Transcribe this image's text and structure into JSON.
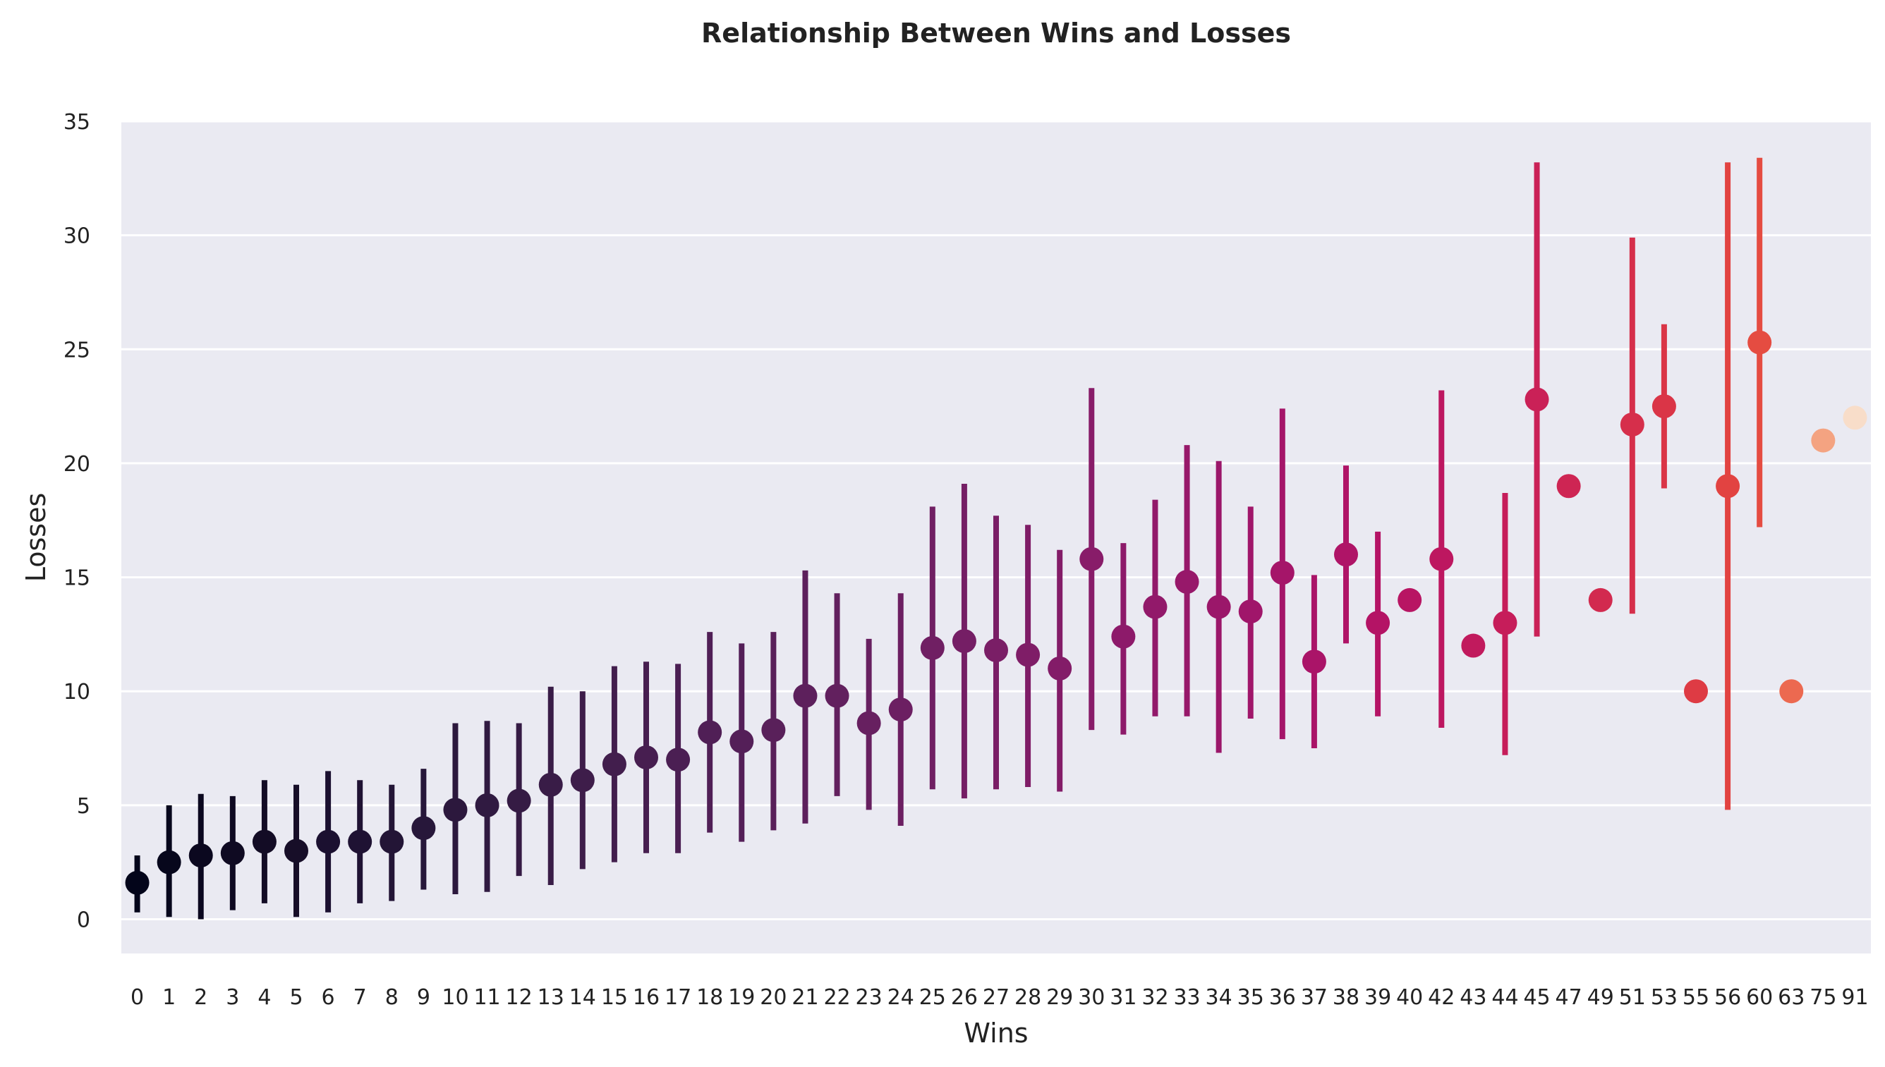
{
  "chart_data": {
    "type": "scatter",
    "title": "Relationship Between Wins and Losses",
    "xlabel": "Wins",
    "ylabel": "Losses",
    "ylim": [
      -1.5,
      35
    ],
    "yticks": [
      0,
      5,
      10,
      15,
      20,
      25,
      30,
      35
    ],
    "grid": true,
    "legend": "none",
    "categories": [
      "0",
      "1",
      "2",
      "3",
      "4",
      "5",
      "6",
      "7",
      "8",
      "9",
      "10",
      "11",
      "12",
      "13",
      "14",
      "15",
      "16",
      "17",
      "18",
      "19",
      "20",
      "21",
      "22",
      "23",
      "24",
      "25",
      "26",
      "27",
      "28",
      "29",
      "30",
      "31",
      "32",
      "33",
      "34",
      "35",
      "36",
      "37",
      "38",
      "39",
      "40",
      "42",
      "43",
      "44",
      "45",
      "47",
      "49",
      "51",
      "53",
      "55",
      "56",
      "60",
      "63",
      "75",
      "91"
    ],
    "values": [
      1.6,
      2.5,
      2.8,
      2.9,
      3.4,
      3.0,
      3.4,
      3.4,
      3.4,
      4.0,
      4.8,
      5.0,
      5.2,
      5.9,
      6.1,
      6.8,
      7.1,
      7.0,
      8.2,
      7.8,
      8.3,
      9.8,
      9.8,
      8.6,
      9.2,
      11.9,
      12.2,
      11.8,
      11.6,
      11.0,
      15.8,
      12.4,
      13.7,
      14.8,
      13.7,
      13.5,
      15.2,
      11.3,
      16.0,
      13.0,
      14.0,
      15.8,
      12.0,
      13.0,
      22.8,
      19.0,
      14.0,
      21.7,
      22.5,
      10.0,
      19.0,
      25.3,
      10.0,
      21.0,
      22.0
    ],
    "ci_low": [
      0.3,
      0.1,
      0.0,
      0.4,
      0.7,
      0.1,
      0.3,
      0.7,
      0.8,
      1.3,
      1.1,
      1.2,
      1.9,
      1.5,
      2.2,
      2.5,
      2.9,
      2.9,
      3.8,
      3.4,
      3.9,
      4.2,
      5.4,
      4.8,
      4.1,
      5.7,
      5.3,
      5.7,
      5.8,
      5.6,
      8.3,
      8.1,
      8.9,
      8.9,
      7.3,
      8.8,
      7.9,
      7.5,
      12.1,
      8.9,
      14.0,
      8.4,
      12.0,
      7.2,
      12.4,
      19.0,
      14.0,
      13.4,
      18.9,
      10.0,
      4.8,
      17.2,
      10.0,
      21.0,
      22.0
    ],
    "ci_high": [
      2.8,
      5.0,
      5.5,
      5.4,
      6.1,
      5.9,
      6.5,
      6.1,
      5.9,
      6.6,
      8.6,
      8.7,
      8.6,
      10.2,
      10.0,
      11.1,
      11.3,
      11.2,
      12.6,
      12.1,
      12.6,
      15.3,
      14.3,
      12.3,
      14.3,
      18.1,
      19.1,
      17.7,
      17.3,
      16.2,
      23.3,
      16.5,
      18.4,
      20.8,
      20.1,
      18.1,
      22.4,
      15.1,
      19.9,
      17.0,
      14.0,
      23.2,
      12.0,
      18.7,
      33.2,
      19.0,
      14.0,
      29.9,
      26.1,
      10.0,
      33.2,
      33.4,
      10.0,
      21.0,
      22.0
    ],
    "colors": [
      "#03051a",
      "#07071c",
      "#0b081f",
      "#0f0a22",
      "#130c25",
      "#170e28",
      "#1b1030",
      "#1f1233",
      "#231536",
      "#27173a",
      "#2c183d",
      "#301a41",
      "#351b44",
      "#391c47",
      "#3e1d4a",
      "#421e4d",
      "#471e50",
      "#4b1f53",
      "#501f56",
      "#541f58",
      "#59205a",
      "#5d205c",
      "#62205e",
      "#672060",
      "#6c1f62",
      "#701f63",
      "#751e65",
      "#7a1e66",
      "#7f1d67",
      "#831c68",
      "#881c69",
      "#8d1a6a",
      "#92196a",
      "#97186a",
      "#9b176a",
      "#a0166a",
      "#a51569",
      "#aa1468",
      "#af1467",
      "#b41365",
      "#b81563",
      "#bd1760",
      "#c11a5d",
      "#c61d5a",
      "#ca2157",
      "#ce2553",
      "#d22a4f",
      "#d62f4b",
      "#da3547",
      "#de3b44",
      "#e24341",
      "#e54c41",
      "#ec6950",
      "#f4a381",
      "#f8ddc9"
    ]
  }
}
